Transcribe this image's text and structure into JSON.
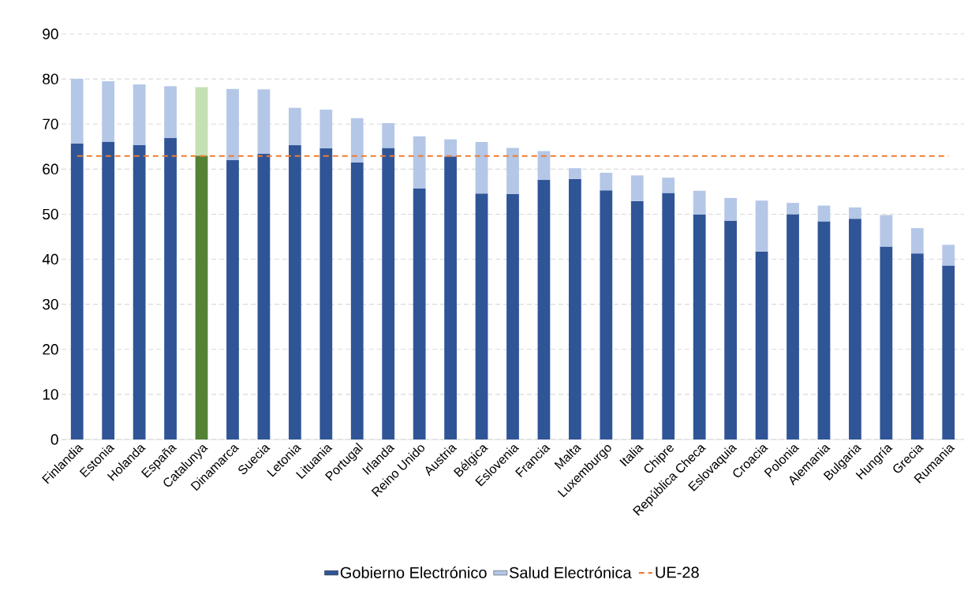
{
  "chart_data": {
    "type": "bar",
    "stacked": true,
    "categories": [
      "Finlandia",
      "Estonia",
      "Holanda",
      "España",
      "Catalunya",
      "Dinamarca",
      "Suecia",
      "Letonia",
      "Lituania",
      "Portugal",
      "Irlanda",
      "Reino Unido",
      "Austria",
      "Bélgica",
      "Eslovenia",
      "Francia",
      "Malta",
      "Luxemburgo",
      "Italia",
      "Chipre",
      "República Checa",
      "Eslovaquia",
      "Croacia",
      "Polonia",
      "Alemania",
      "Bulgaria",
      "Hungría",
      "Grecia",
      "Rumania"
    ],
    "series": [
      {
        "name": "Gobierno Electrónico",
        "color": "#2f5597",
        "colors": [
          "#2f5597",
          "#2f5597",
          "#2f5597",
          "#2f5597",
          "#548235",
          "#2f5597",
          "#2f5597",
          "#2f5597",
          "#2f5597",
          "#2f5597",
          "#2f5597",
          "#2f5597",
          "#2f5597",
          "#2f5597",
          "#2f5597",
          "#2f5597",
          "#2f5597",
          "#2f5597",
          "#2f5597",
          "#2f5597",
          "#2f5597",
          "#2f5597",
          "#2f5597",
          "#2f5597",
          "#2f5597",
          "#2f5597",
          "#2f5597",
          "#2f5597",
          "#2f5597"
        ],
        "values": [
          65.7,
          66.1,
          65.3,
          66.9,
          63.0,
          62.0,
          63.4,
          65.3,
          64.6,
          61.5,
          64.7,
          55.7,
          62.8,
          54.6,
          54.5,
          57.6,
          57.8,
          55.3,
          52.9,
          54.7,
          49.9,
          48.5,
          41.7,
          50.0,
          48.4,
          49.0,
          42.8,
          41.3,
          38.6
        ]
      },
      {
        "name": "Salud Electrónica",
        "color": "#b4c7e7",
        "colors": [
          "#b4c7e7",
          "#b4c7e7",
          "#b4c7e7",
          "#b4c7e7",
          "#c5e0b4",
          "#b4c7e7",
          "#b4c7e7",
          "#b4c7e7",
          "#b4c7e7",
          "#b4c7e7",
          "#b4c7e7",
          "#b4c7e7",
          "#b4c7e7",
          "#b4c7e7",
          "#b4c7e7",
          "#b4c7e7",
          "#b4c7e7",
          "#b4c7e7",
          "#b4c7e7",
          "#b4c7e7",
          "#b4c7e7",
          "#b4c7e7",
          "#b4c7e7",
          "#b4c7e7",
          "#b4c7e7",
          "#b4c7e7",
          "#b4c7e7",
          "#b4c7e7",
          "#b4c7e7"
        ],
        "values": [
          14.3,
          13.4,
          13.5,
          11.5,
          15.2,
          15.8,
          14.3,
          8.3,
          8.6,
          9.8,
          5.5,
          11.6,
          3.8,
          11.4,
          10.2,
          6.4,
          2.4,
          3.9,
          5.7,
          3.4,
          5.3,
          5.1,
          11.3,
          2.5,
          3.5,
          2.5,
          7.0,
          5.6,
          4.6
        ]
      }
    ],
    "ylim": [
      0,
      90
    ],
    "yticks": [
      0,
      10,
      20,
      30,
      40,
      50,
      60,
      70,
      80,
      90
    ],
    "ref_lines": [
      {
        "axis": "y",
        "value": 62.9,
        "label": "UE-28",
        "color": "#ed7d31",
        "line_style": "dashed"
      }
    ],
    "grid": "y",
    "legend": "bottom"
  }
}
